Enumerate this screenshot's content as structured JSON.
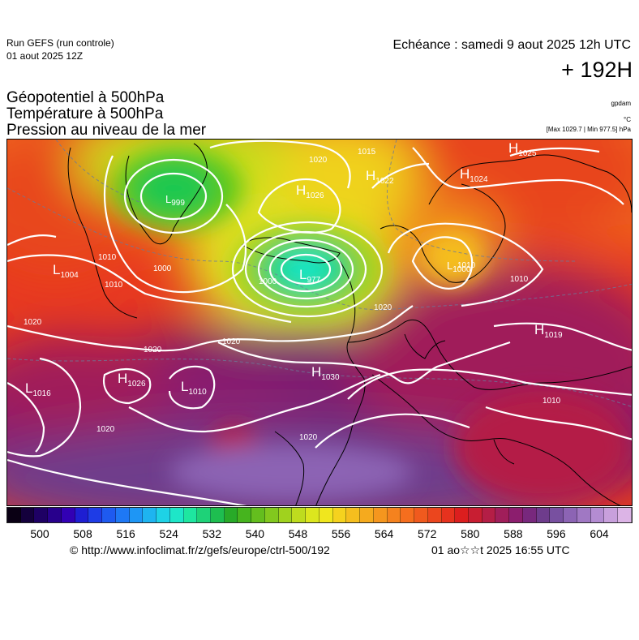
{
  "header": {
    "run_title": "Run GEFS (run controle)",
    "run_date": "01 aout 2025 12Z",
    "echeance": "Echéance : samedi 9 aout 2025 12h UTC",
    "forecast_hour": "+ 192H"
  },
  "parameters": {
    "line1": "Géopotentiel à 500hPa",
    "line2": "Température à 500hPa",
    "line3": "Pression au niveau de la mer"
  },
  "units": {
    "geopotential": "gpdam",
    "temperature": "°C",
    "pressure": "[Max 1029.7 | Min 977.5] hPa"
  },
  "pressure_centers": [
    {
      "type": "H",
      "value": "1025"
    },
    {
      "type": "H",
      "value": "1026"
    },
    {
      "type": "H",
      "value": "1022"
    },
    {
      "type": "H",
      "value": "1024"
    },
    {
      "type": "L",
      "value": "1004"
    },
    {
      "type": "L",
      "value": "977"
    },
    {
      "type": "L",
      "value": "999"
    },
    {
      "type": "L",
      "value": "1000"
    },
    {
      "type": "H",
      "value": "1019"
    },
    {
      "type": "H",
      "value": "1026"
    },
    {
      "type": "L",
      "value": "1010"
    },
    {
      "type": "H",
      "value": "1030"
    },
    {
      "type": "L",
      "value": "1016"
    }
  ],
  "isobar_labels": [
    "1015",
    "1020",
    "1010",
    "1000",
    "1000",
    "1010",
    "1010",
    "1020",
    "1020",
    "1020",
    "1020",
    "1020",
    "1020",
    "1010",
    "1010"
  ],
  "colorbar": {
    "ticks": [
      "500",
      "508",
      "516",
      "524",
      "532",
      "540",
      "548",
      "556",
      "564",
      "572",
      "580",
      "588",
      "596",
      "604"
    ],
    "colors": [
      "#0a0014",
      "#14003c",
      "#1e0064",
      "#28008c",
      "#3200b4",
      "#1e1ed2",
      "#1e3ce6",
      "#1e5af0",
      "#1e78f5",
      "#1e96f5",
      "#1eb4f0",
      "#1ed2e6",
      "#1ee6c8",
      "#1ee6a0",
      "#1ed278",
      "#1ebe50",
      "#28aa28",
      "#46b41e",
      "#64be1e",
      "#82c81e",
      "#a0d21e",
      "#bedc1e",
      "#dce61e",
      "#f0e61e",
      "#f5d21e",
      "#f5be1e",
      "#f5aa1e",
      "#f5961e",
      "#f5821e",
      "#f56e1e",
      "#f05a1e",
      "#eb461e",
      "#e6321e",
      "#dc1e1e",
      "#c81e32",
      "#b41e46",
      "#a01e5a",
      "#8c1e6e",
      "#78287d",
      "#6e3c8c",
      "#7850a0",
      "#8c64b4",
      "#a078c3",
      "#b48cd2",
      "#c8a0dc",
      "#dcb4e6"
    ]
  },
  "footer": {
    "url": "© http://www.infoclimat.fr/z/gefs/europe/ctrl-500/192",
    "generated": "01 ao☆☆t 2025 16:55 UTC"
  }
}
